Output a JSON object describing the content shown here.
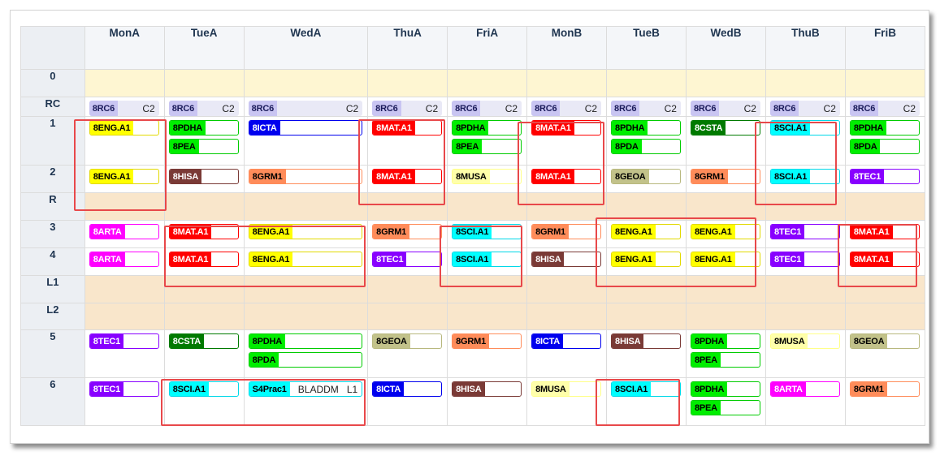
{
  "columns": [
    "MonA",
    "TueA",
    "WedA",
    "ThuA",
    "FriA",
    "MonB",
    "TueB",
    "WedB",
    "ThuB",
    "FriB"
  ],
  "rows": [
    "0",
    "RC",
    "1",
    "2",
    "R",
    "3",
    "4",
    "L1",
    "L2",
    "5",
    "6"
  ],
  "colors": {
    "rc": "#c9c5f2",
    "highlight": "#e8484a"
  },
  "subjects": {
    "8ENG.A1": {
      "bg": "#ffff00",
      "fg": "#000000",
      "border": "#e2d900"
    },
    "8MAT.A1": {
      "bg": "#ff0000",
      "fg": "#ffffff",
      "border": "#ff0000"
    },
    "8PDHA": {
      "bg": "#00ee00",
      "fg": "#000000",
      "border": "#00cc00"
    },
    "8PEA": {
      "bg": "#00ee00",
      "fg": "#000000",
      "border": "#00cc00"
    },
    "8PDA": {
      "bg": "#00ee00",
      "fg": "#000000",
      "border": "#00cc00"
    },
    "8ICTA": {
      "bg": "#0000ee",
      "fg": "#ffffff",
      "border": "#0000ee"
    },
    "8CSTA": {
      "bg": "#007a00",
      "fg": "#ffffff",
      "border": "#007a00"
    },
    "8SCI.A1": {
      "bg": "#00ffff",
      "fg": "#000000",
      "border": "#00d8e8"
    },
    "8HISA": {
      "bg": "#7a3a36",
      "fg": "#ffffff",
      "border": "#7a3a36"
    },
    "8GRM1": {
      "bg": "#ff8c5a",
      "fg": "#000000",
      "border": "#ff8c5a"
    },
    "8MUSA": {
      "bg": "#ffffaa",
      "fg": "#000000",
      "border": "#ffff88"
    },
    "8GEOA": {
      "bg": "#c2c28a",
      "fg": "#000000",
      "border": "#b8b87e"
    },
    "8TEC1": {
      "bg": "#8800ff",
      "fg": "#ffffff",
      "border": "#8800ff"
    },
    "8ARTA": {
      "bg": "#ff00ff",
      "fg": "#ffffff",
      "border": "#ff00ff"
    },
    "S4Prac1": {
      "bg": "#00ffff",
      "fg": "#000000",
      "border": "#00d8e8"
    }
  },
  "rc_chip": {
    "code": "8RC6",
    "room": "C2"
  },
  "grid": {
    "1": [
      [
        "8ENG.A1"
      ],
      [
        "8PDHA",
        "8PEA"
      ],
      [
        "8ICTA"
      ],
      [
        "8MAT.A1"
      ],
      [
        "8PDHA",
        "8PEA"
      ],
      [
        "8MAT.A1"
      ],
      [
        "8PDHA",
        "8PDA"
      ],
      [
        "8CSTA"
      ],
      [
        "8SCI.A1"
      ],
      [
        "8PDHA",
        "8PDA"
      ]
    ],
    "2": [
      [
        "8ENG.A1"
      ],
      [
        "8HISA"
      ],
      [
        "8GRM1"
      ],
      [
        "8MAT.A1"
      ],
      [
        "8MUSA"
      ],
      [
        "8MAT.A1"
      ],
      [
        "8GEOA"
      ],
      [
        "8GRM1"
      ],
      [
        "8SCI.A1"
      ],
      [
        "8TEC1"
      ]
    ],
    "3": [
      [
        "8ARTA"
      ],
      [
        "8MAT.A1"
      ],
      [
        "8ENG.A1"
      ],
      [
        "8GRM1"
      ],
      [
        "8SCI.A1"
      ],
      [
        "8GRM1"
      ],
      [
        "8ENG.A1"
      ],
      [
        "8ENG.A1"
      ],
      [
        "8TEC1"
      ],
      [
        "8MAT.A1"
      ]
    ],
    "4": [
      [
        "8ARTA"
      ],
      [
        "8MAT.A1"
      ],
      [
        "8ENG.A1"
      ],
      [
        "8TEC1"
      ],
      [
        "8SCI.A1"
      ],
      [
        "8HISA"
      ],
      [
        "8ENG.A1"
      ],
      [
        "8ENG.A1"
      ],
      [
        "8TEC1"
      ],
      [
        "8MAT.A1"
      ]
    ],
    "5": [
      [
        "8TEC1"
      ],
      [
        "8CSTA"
      ],
      [
        "8PDHA",
        "8PDA"
      ],
      [
        "8GEOA"
      ],
      [
        "8GRM1"
      ],
      [
        "8ICTA"
      ],
      [
        "8HISA"
      ],
      [
        "8PDHA",
        "8PEA"
      ],
      [
        "8MUSA"
      ],
      [
        "8GEOA"
      ]
    ],
    "6": [
      [
        "8TEC1"
      ],
      [
        "8SCI.A1"
      ],
      [
        "S4Prac1"
      ],
      [
        "8ICTA"
      ],
      [
        "8HISA"
      ],
      [
        "8MUSA"
      ],
      [
        "8SCI.A1"
      ],
      [
        "8PDHA",
        "8PEA"
      ],
      [
        "8ARTA"
      ],
      [
        "8GRM1"
      ]
    ]
  },
  "wed6_chip": {
    "code": "S4Prac1",
    "teacher": "BLADDM",
    "room": "L1"
  }
}
